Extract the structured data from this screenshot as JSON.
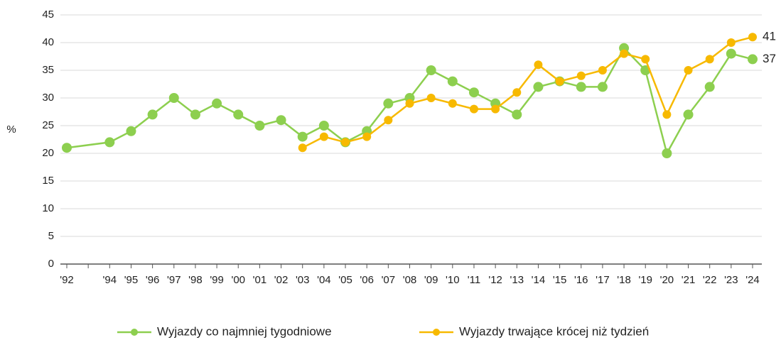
{
  "chart_data": {
    "type": "line",
    "y_label": "%",
    "categories": [
      "'92",
      null,
      "'94",
      "'95",
      "'96",
      "'97",
      "'98",
      "'99",
      "'00",
      "'01",
      "'02",
      "'03",
      "'04",
      "'05",
      "'06",
      "'07",
      "'08",
      "'09",
      "'10",
      "'11",
      "'12",
      "'13",
      "'14",
      "'15",
      "'16",
      "'17",
      "'18",
      "'19",
      "'20",
      "'21",
      "'22",
      "'23",
      "'24"
    ],
    "series": [
      {
        "name": "Wyjazdy co najmniej tygodniowe",
        "color": "#8dcf4f",
        "values": [
          21,
          null,
          22,
          24,
          27,
          30,
          27,
          29,
          27,
          25,
          26,
          23,
          25,
          22,
          24,
          29,
          30,
          35,
          33,
          31,
          29,
          27,
          32,
          33,
          32,
          32,
          39,
          35,
          20,
          27,
          32,
          38,
          37
        ]
      },
      {
        "name": "Wyjazdy trwające krócej niż tydzień",
        "color": "#f7b900",
        "values": [
          null,
          null,
          null,
          null,
          null,
          null,
          null,
          null,
          null,
          null,
          null,
          21,
          23,
          22,
          23,
          26,
          29,
          30,
          29,
          28,
          28,
          31,
          36,
          33,
          34,
          35,
          38,
          37,
          27,
          35,
          37,
          40,
          41
        ]
      }
    ],
    "ylim": [
      0,
      45
    ],
    "yticks": [
      0,
      5,
      10,
      15,
      20,
      25,
      30,
      35,
      40,
      45
    ],
    "grid": true,
    "connect_nulls": true,
    "end_labels": true,
    "legend": "bottom"
  }
}
